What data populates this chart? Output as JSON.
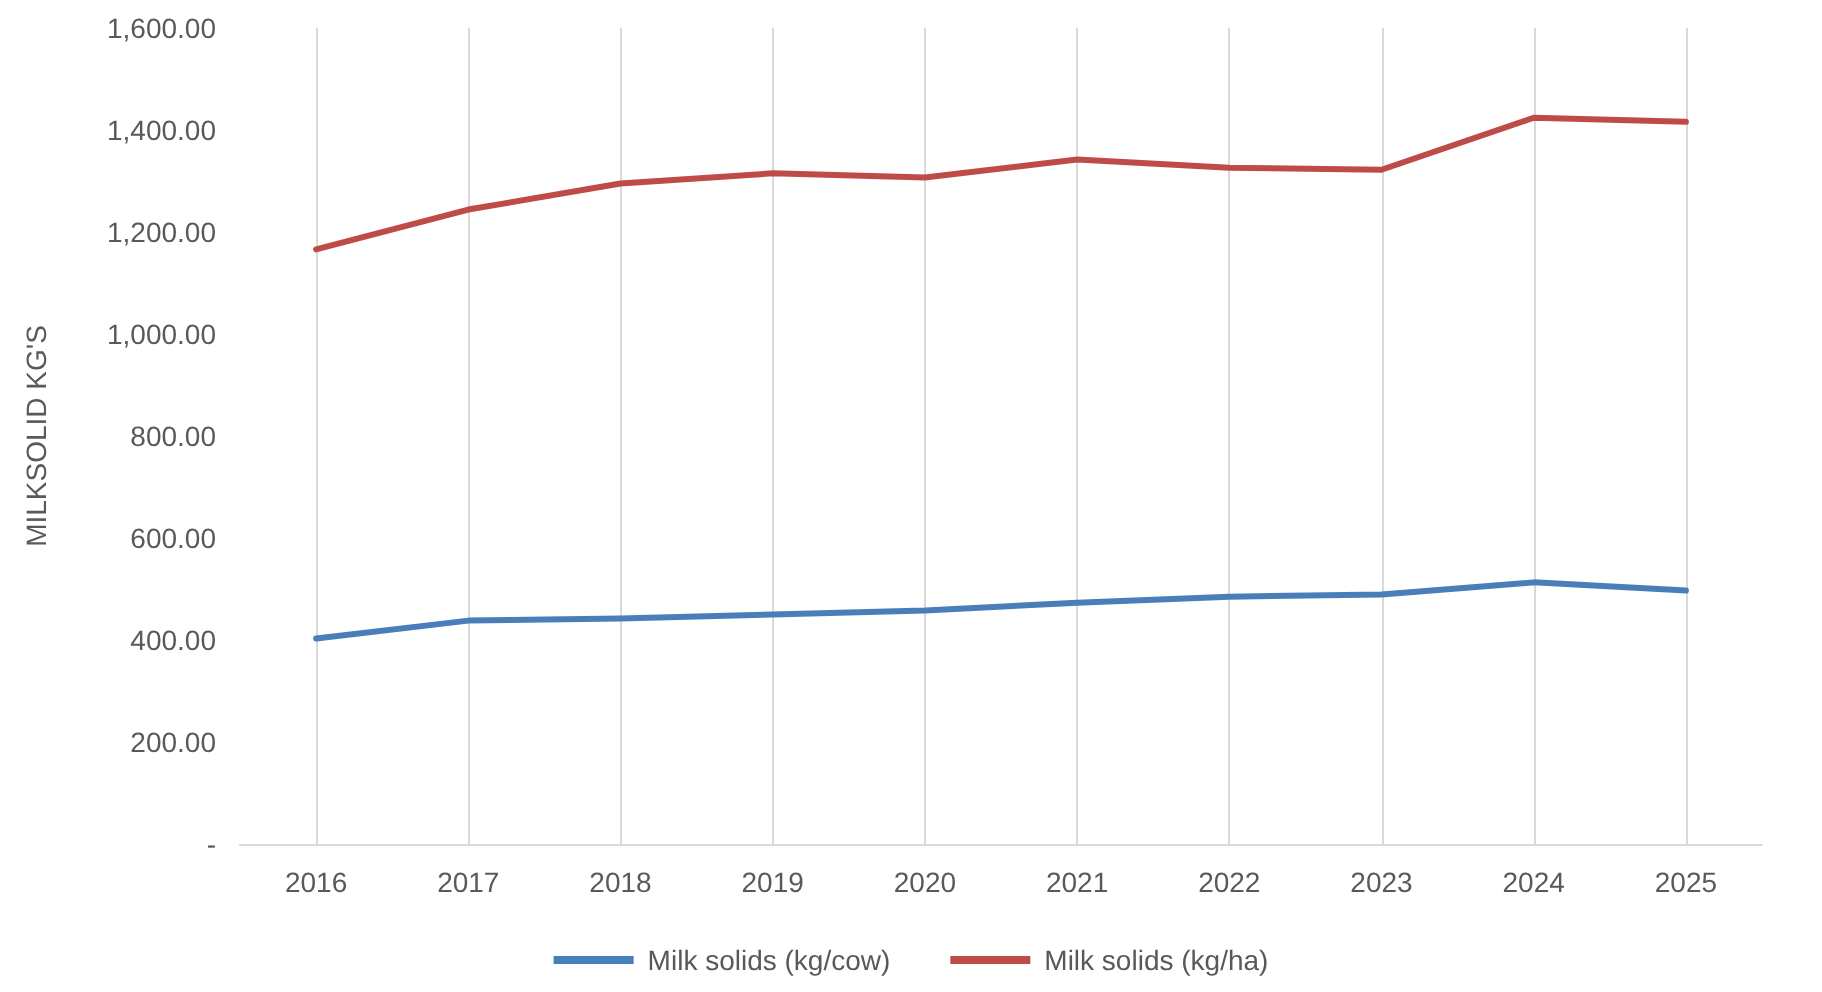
{
  "chart_data": {
    "type": "line",
    "ylabel": "MILKSOLID KG'S",
    "x": [
      2016,
      2017,
      2018,
      2019,
      2020,
      2021,
      2022,
      2023,
      2024,
      2025
    ],
    "xlim": [
      2015.5,
      2025.5
    ],
    "xticks": [
      2016,
      2017,
      2018,
      2019,
      2020,
      2021,
      2022,
      2023,
      2024,
      2025
    ],
    "ylim": [
      0,
      1600
    ],
    "yticks": [
      {
        "value": 0,
        "label": "-"
      },
      {
        "value": 200,
        "label": "200.00"
      },
      {
        "value": 400,
        "label": "400.00"
      },
      {
        "value": 600,
        "label": "600.00"
      },
      {
        "value": 800,
        "label": "800.00"
      },
      {
        "value": 1000,
        "label": "1,000.00"
      },
      {
        "value": 1200,
        "label": "1,200.00"
      },
      {
        "value": 1400,
        "label": "1,400.00"
      },
      {
        "value": 1600,
        "label": "1,600.00"
      }
    ],
    "series": [
      {
        "name": "Milk solids (kg/cow)",
        "color": "#4a7ebb",
        "values": [
          403,
          438,
          442,
          450,
          458,
          473,
          485,
          489,
          513,
          497
        ]
      },
      {
        "name": "Milk solids (kg/ha)",
        "color": "#be4b48",
        "values": [
          1166,
          1244,
          1295,
          1315,
          1307,
          1342,
          1326,
          1322,
          1424,
          1416
        ]
      }
    ],
    "grid": "x",
    "legend": "bottom",
    "marker": "none",
    "line_style": "solid"
  }
}
